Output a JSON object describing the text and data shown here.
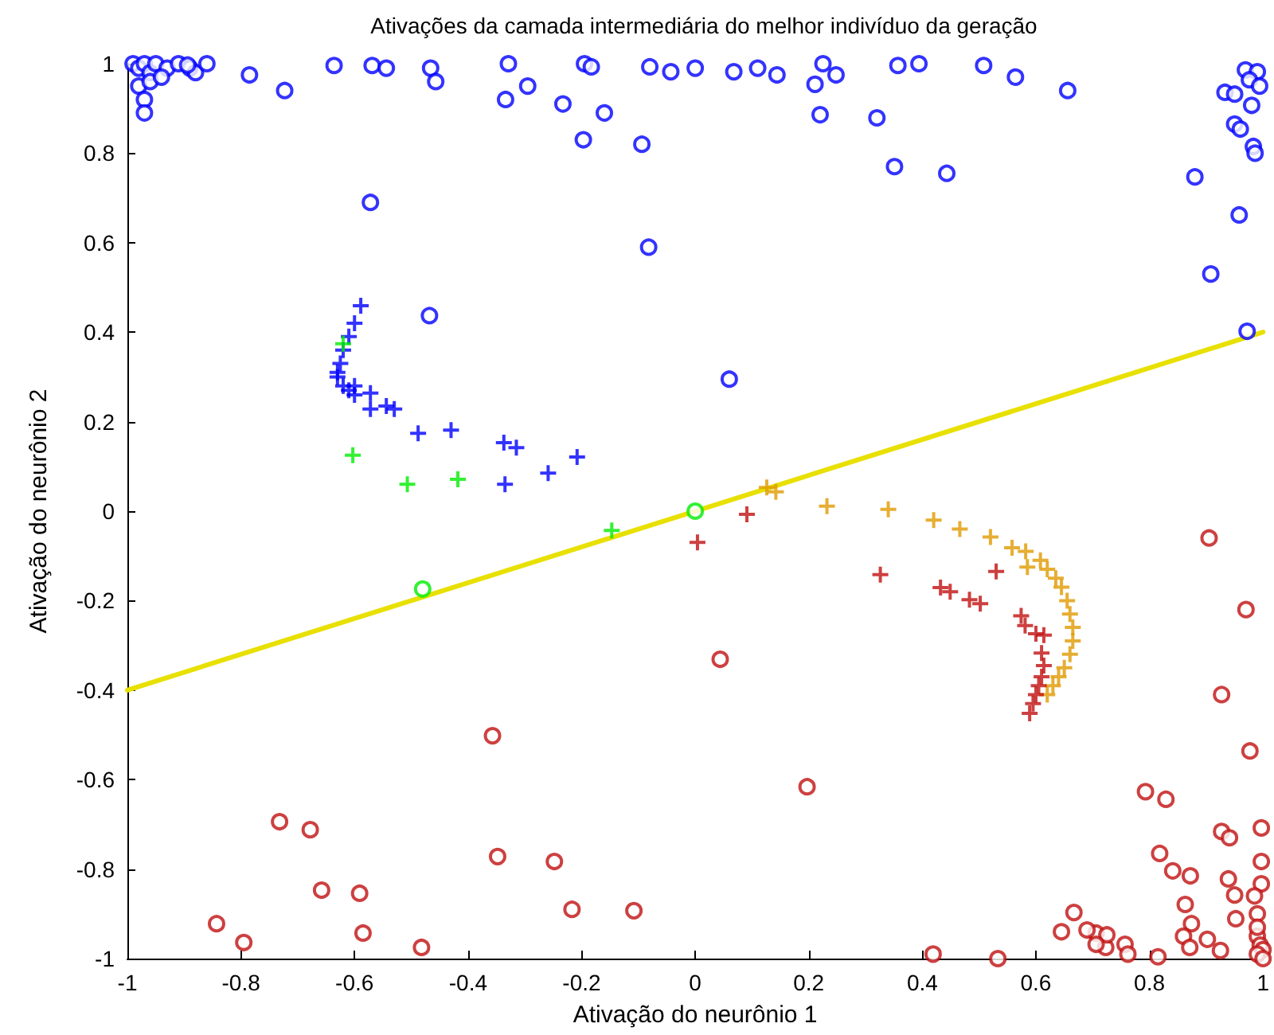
{
  "chart_data": {
    "type": "scatter",
    "title": "Ativações da camada intermediária do melhor indivíduo da geração",
    "xlabel": "Ativação do neurônio 1",
    "ylabel": "Ativação do neurônio 2",
    "xlim": [
      -1,
      1
    ],
    "ylim": [
      -1,
      1
    ],
    "xticks": [
      -1,
      -0.8,
      -0.6,
      -0.4,
      -0.2,
      0,
      0.2,
      0.4,
      0.6,
      0.8,
      1
    ],
    "yticks": [
      -1,
      -0.8,
      -0.6,
      -0.4,
      -0.2,
      0,
      0.2,
      0.4,
      0.6,
      0.8,
      1
    ],
    "grid": false,
    "series": [
      {
        "marker": "circle",
        "color": "#0000ff",
        "x": [
          -0.99,
          -0.98,
          -0.97,
          -0.96,
          -0.95,
          -0.93,
          -0.91,
          -0.89,
          -0.88,
          -0.98,
          -0.97,
          -0.97,
          -0.96,
          -0.94,
          -0.894,
          -0.86,
          -0.785,
          -0.723,
          -0.636,
          -0.569,
          -0.544,
          -0.466,
          -0.457,
          -0.329,
          -0.334,
          -0.295,
          -0.233,
          -0.195,
          -0.183,
          -0.16,
          -0.197,
          -0.094,
          -0.08,
          -0.043,
          -0.572,
          -0.082,
          -0.468,
          0.06,
          0.0,
          0.068,
          0.11,
          0.144,
          0.225,
          0.211,
          0.248,
          0.357,
          0.394,
          0.508,
          0.564,
          0.656,
          0.22,
          0.32,
          0.351,
          0.443,
          0.88,
          0.958,
          0.908,
          0.972,
          0.969,
          0.99,
          0.976,
          0.994,
          0.933,
          0.95,
          0.98,
          0.95,
          0.96,
          0.983,
          0.986
        ],
        "values": [
          1,
          0.99,
          1,
          0.98,
          1,
          0.99,
          1,
          0.99,
          0.98,
          0.95,
          0.92,
          0.89,
          0.96,
          0.97,
          0.997,
          1,
          0.975,
          0.94,
          0.996,
          0.996,
          0.99,
          0.99,
          0.96,
          1,
          0.92,
          0.95,
          0.91,
          1,
          0.993,
          0.89,
          0.83,
          0.82,
          0.993,
          0.982,
          0.69,
          0.59,
          0.437,
          0.295,
          0.99,
          0.982,
          0.99,
          0.975,
          1,
          0.954,
          0.975,
          0.996,
          1,
          0.996,
          0.97,
          0.94,
          0.886,
          0.879,
          0.77,
          0.755,
          0.747,
          0.662,
          0.53,
          0.402,
          0.986,
          0.982,
          0.964,
          0.95,
          0.936,
          0.932,
          0.907,
          0.865,
          0.854,
          0.815,
          0.8
        ]
      },
      {
        "marker": "circle",
        "color": "#c01010",
        "x": [
          -0.357,
          0.197,
          -0.732,
          -0.678,
          -0.348,
          -0.248,
          -0.658,
          -0.591,
          -0.217,
          -0.108,
          -0.843,
          -0.795,
          -0.585,
          -0.482,
          0.419,
          0.533,
          0.645,
          0.667,
          0.706,
          0.723,
          0.044,
          0.905,
          0.97,
          0.927,
          0.977,
          0.793,
          0.829,
          0.927,
          0.941,
          0.997,
          0.818,
          0.841,
          0.872,
          0.997,
          0.939,
          0.95,
          0.997,
          0.863,
          0.952,
          0.874,
          0.86,
          0.902,
          0.925,
          0.871,
          0.69,
          0.725,
          0.706,
          0.757,
          0.762,
          0.815,
          0.99,
          0.99,
          0.995,
          1,
          0.99,
          1,
          0.985,
          0.99
        ],
        "values": [
          -0.502,
          -0.616,
          -0.694,
          -0.712,
          -0.772,
          -0.783,
          -0.847,
          -0.854,
          -0.89,
          -0.893,
          -0.922,
          -0.964,
          -0.943,
          -0.975,
          -0.99,
          -1,
          -0.94,
          -0.897,
          -0.943,
          -0.975,
          -0.331,
          -0.06,
          -0.22,
          -0.41,
          -0.536,
          -0.627,
          -0.644,
          -0.716,
          -0.73,
          -0.708,
          -0.765,
          -0.804,
          -0.815,
          -0.783,
          -0.822,
          -0.858,
          -0.833,
          -0.879,
          -0.911,
          -0.922,
          -0.95,
          -0.957,
          -0.982,
          -0.975,
          -0.936,
          -0.947,
          -0.968,
          -0.968,
          -0.99,
          -0.996,
          -0.9,
          -0.95,
          -0.97,
          -0.98,
          -0.99,
          -1,
          -0.86,
          -0.93
        ]
      },
      {
        "marker": "cross",
        "color": "#0000ff",
        "x": [
          -0.589,
          -0.6,
          -0.61,
          -0.62,
          -0.625,
          -0.63,
          -0.63,
          -0.62,
          -0.61,
          -0.6,
          -0.6,
          -0.572,
          -0.572,
          -0.544,
          -0.53,
          -0.488,
          -0.43,
          -0.337,
          -0.315,
          -0.335,
          -0.259,
          -0.208
        ],
        "values": [
          0.459,
          0.42,
          0.39,
          0.36,
          0.33,
          0.31,
          0.3,
          0.28,
          0.27,
          0.26,
          0.28,
          0.264,
          0.228,
          0.235,
          0.228,
          0.174,
          0.181,
          0.153,
          0.142,
          0.06,
          0.085,
          0.121
        ]
      },
      {
        "marker": "cross",
        "color": "#00ee00",
        "x": [
          -0.62,
          -0.603,
          -0.507,
          -0.418,
          -0.147
        ],
        "values": [
          0.374,
          0.125,
          0.06,
          0.071,
          -0.043
        ]
      },
      {
        "marker": "circle",
        "color": "#00ee00",
        "x": [
          -0.48,
          0
        ],
        "values": [
          -0.174,
          0
        ]
      },
      {
        "marker": "cross",
        "color": "#e09a00",
        "x": [
          0.126,
          0.142,
          0.232,
          0.34,
          0.42,
          0.466,
          0.52,
          0.558,
          0.582,
          0.585,
          0.608,
          0.62,
          0.635,
          0.645,
          0.655,
          0.66,
          0.665,
          0.665,
          0.66,
          0.65,
          0.64,
          0.63,
          0.62
        ],
        "values": [
          0.053,
          0.043,
          0.011,
          0.004,
          -0.02,
          -0.04,
          -0.058,
          -0.082,
          -0.09,
          -0.125,
          -0.11,
          -0.13,
          -0.15,
          -0.17,
          -0.2,
          -0.23,
          -0.26,
          -0.29,
          -0.32,
          -0.35,
          -0.37,
          -0.39,
          -0.41
        ]
      },
      {
        "marker": "cross",
        "color": "#c01010",
        "x": [
          0.091,
          0.004,
          0.326,
          0.432,
          0.449,
          0.483,
          0.502,
          0.53,
          0.574,
          0.581,
          0.6,
          0.614,
          0.61,
          0.614,
          0.61,
          0.605,
          0.6,
          0.595,
          0.589
        ],
        "values": [
          -0.007,
          -0.07,
          -0.142,
          -0.171,
          -0.18,
          -0.198,
          -0.207,
          -0.135,
          -0.234,
          -0.256,
          -0.274,
          -0.277,
          -0.317,
          -0.345,
          -0.37,
          -0.39,
          -0.41,
          -0.43,
          -0.452
        ]
      },
      {
        "type": "line",
        "marker": "none",
        "color": "#e8e000",
        "x": [
          -1,
          1
        ],
        "values": [
          -0.4,
          0.4
        ]
      }
    ]
  }
}
